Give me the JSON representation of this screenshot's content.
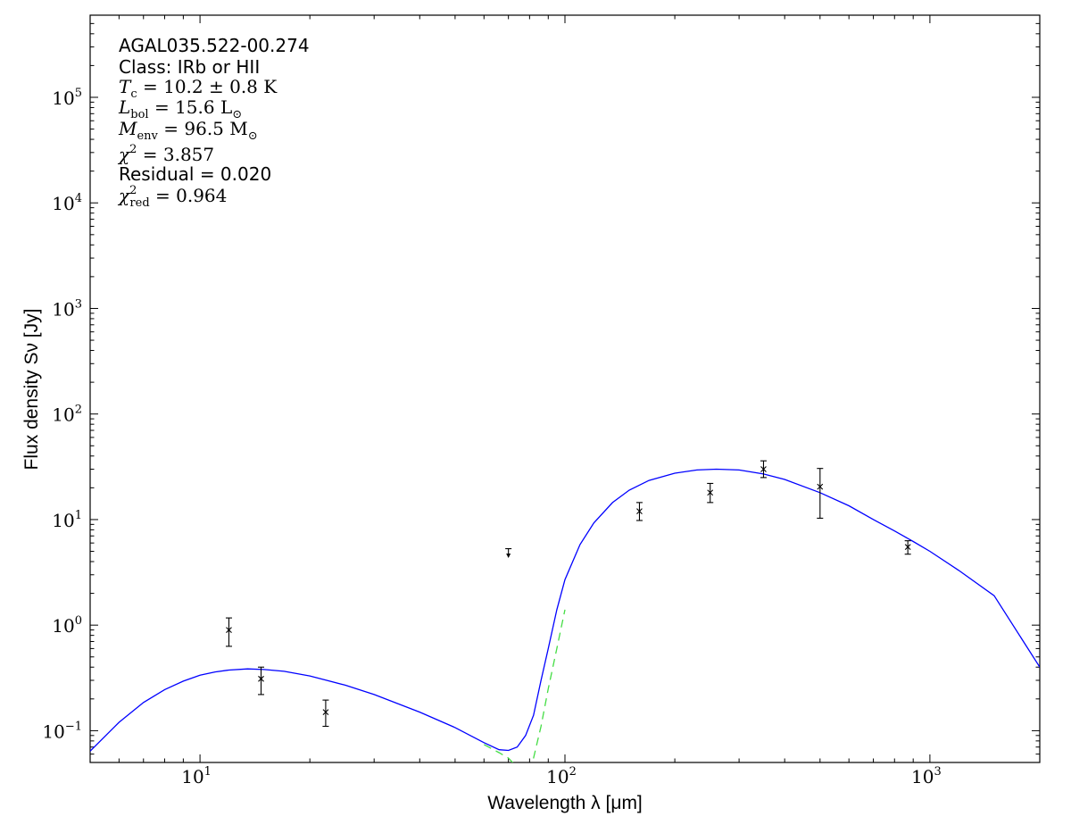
{
  "chart_data": {
    "type": "scatter",
    "title": "",
    "xlabel": "Wavelength λ [μm]",
    "ylabel": "Flux density Sν [Jy]",
    "xscale": "log",
    "yscale": "log",
    "xlim": [
      5,
      2000
    ],
    "ylim": [
      0.05,
      600000
    ],
    "grid": false,
    "x_tick_labels": [
      {
        "value": 10,
        "base": "10",
        "exp": "1"
      },
      {
        "value": 100,
        "base": "10",
        "exp": "2"
      },
      {
        "value": 1000,
        "base": "10",
        "exp": "3"
      }
    ],
    "y_tick_labels": [
      {
        "value": 0.1,
        "base": "10",
        "exp": "−1"
      },
      {
        "value": 1,
        "base": "10",
        "exp": "0"
      },
      {
        "value": 10,
        "base": "10",
        "exp": "1"
      },
      {
        "value": 100,
        "base": "10",
        "exp": "2"
      },
      {
        "value": 1000,
        "base": "10",
        "exp": "3"
      },
      {
        "value": 10000,
        "base": "10",
        "exp": "4"
      },
      {
        "value": 100000,
        "base": "10",
        "exp": "5"
      }
    ],
    "annotations": {
      "source": "AGAL035.522-00.274",
      "class_text": "Class: IRb or HII",
      "tc_lhs": "T",
      "tc_sub": "c",
      "tc_rhs": " = 10.2 ± 0.8 K",
      "lbol_lhs": "L",
      "lbol_sub": "bol",
      "lbol_rhs": " = 15.6 L",
      "lbol_unit_sub": "⊙",
      "menv_lhs": "M",
      "menv_sub": "env",
      "menv_rhs": " = 96.5 M",
      "menv_unit_sub": "⊙",
      "chi2_lhs": "χ",
      "chi2_sup": "2",
      "chi2_rhs": " = 3.857",
      "residual_text": "Residual = 0.020",
      "chi2red_lhs": "χ",
      "chi2red_sup": "2",
      "chi2red_sub": "red",
      "chi2red_rhs": " = 0.964"
    },
    "observations": [
      {
        "x": 12.0,
        "y": 0.9,
        "yerr_low": 0.63,
        "yerr_high": 1.17
      },
      {
        "x": 14.7,
        "y": 0.31,
        "yerr_low": 0.22,
        "yerr_high": 0.4
      },
      {
        "x": 22.1,
        "y": 0.15,
        "yerr_low": 0.11,
        "yerr_high": 0.195
      },
      {
        "x": 160,
        "y": 12.0,
        "yerr_low": 9.8,
        "yerr_high": 14.5
      },
      {
        "x": 250,
        "y": 18.0,
        "yerr_low": 14.5,
        "yerr_high": 22.0
      },
      {
        "x": 350,
        "y": 30.0,
        "yerr_low": 25.0,
        "yerr_high": 36.0
      },
      {
        "x": 500,
        "y": 20.5,
        "yerr_low": 10.3,
        "yerr_high": 30.5
      },
      {
        "x": 870,
        "y": 5.5,
        "yerr_low": 4.7,
        "yerr_high": 6.3
      }
    ],
    "upper_limits": [
      {
        "x": 70,
        "y": 5.3,
        "y_end": 4.5
      }
    ],
    "series": [
      {
        "kind": "total_model",
        "color": "#0000ff",
        "style": "solid",
        "x": [
          5,
          6,
          7,
          8,
          9,
          10,
          11,
          12,
          13.5,
          15,
          17,
          20,
          25,
          30,
          40,
          50,
          60,
          66,
          70,
          74,
          78,
          82,
          86,
          90,
          95,
          100,
          110,
          120,
          135,
          150,
          170,
          200,
          230,
          260,
          300,
          350,
          400,
          500,
          600,
          700,
          800,
          900,
          1000,
          1200,
          1500,
          2000
        ],
        "y": [
          0.064,
          0.12,
          0.185,
          0.245,
          0.295,
          0.335,
          0.36,
          0.375,
          0.385,
          0.38,
          0.365,
          0.33,
          0.27,
          0.22,
          0.15,
          0.107,
          0.077,
          0.066,
          0.065,
          0.07,
          0.09,
          0.14,
          0.3,
          0.6,
          1.4,
          2.7,
          5.8,
          9.3,
          14.5,
          19.0,
          23.5,
          27.5,
          29.5,
          30.0,
          29.5,
          27.0,
          24.0,
          18.0,
          13.5,
          10.0,
          7.8,
          6.2,
          5.0,
          3.3,
          1.9,
          0.4
        ]
      },
      {
        "kind": "cold_component",
        "color": "#44dd44",
        "style": "dashed",
        "x": [
          60,
          66,
          70,
          74,
          78,
          82,
          86,
          90,
          95,
          100
        ],
        "y": [
          0.074,
          0.062,
          0.055,
          0.045,
          0.04,
          0.055,
          0.11,
          0.25,
          0.6,
          1.4
        ]
      }
    ]
  }
}
